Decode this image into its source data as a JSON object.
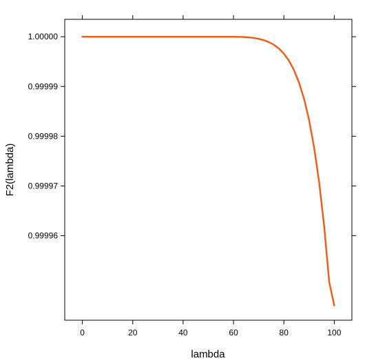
{
  "chart_data": {
    "type": "line",
    "title": "",
    "xlabel": "lambda",
    "ylabel": "F2(lambda)",
    "xlim": [
      -7,
      107
    ],
    "ylim": [
      0.999943,
      1.0000035
    ],
    "x_ticks": [
      0,
      20,
      40,
      60,
      80,
      100
    ],
    "x_tick_labels": [
      "0",
      "20",
      "40",
      "60",
      "80",
      "100"
    ],
    "y_ticks": [
      0.99996,
      0.99997,
      0.99998,
      0.99999,
      1.0
    ],
    "y_tick_labels": [
      "0.99996",
      "0.99997",
      "0.99998",
      "0.99999",
      "1.00000"
    ],
    "grid": false,
    "series": [
      {
        "color": "#E8601C",
        "x": [
          0,
          10,
          20,
          30,
          40,
          50,
          55,
          60,
          62,
          64,
          66,
          68,
          70,
          72,
          74,
          76,
          78,
          80,
          82,
          84,
          86,
          88,
          90,
          92,
          94,
          96,
          98,
          100
        ],
        "y": [
          1.0,
          1.0,
          1.0,
          1.0,
          1.0,
          1.0,
          1.0,
          1.0,
          0.99999998,
          0.99999994,
          0.99999987,
          0.99999975,
          0.99999957,
          0.99999931,
          0.99999893,
          0.99999839,
          0.99999763,
          0.99999659,
          0.99999519,
          0.9999933,
          0.9999908,
          0.99998752,
          0.99998325,
          0.99997775,
          0.99997074,
          0.99996185,
          0.99995067,
          0.99994596
        ]
      }
    ]
  }
}
